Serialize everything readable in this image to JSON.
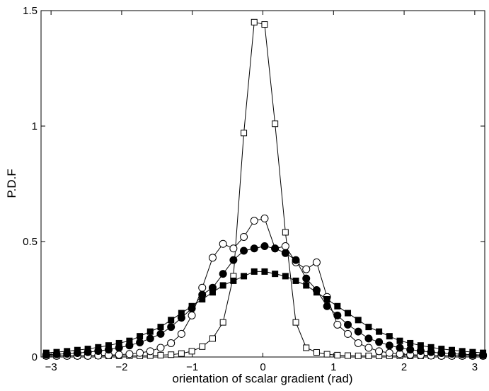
{
  "chart_data": {
    "type": "line",
    "title": "",
    "xlabel": "orientation of scalar gradient (rad)",
    "ylabel": "P.D.F",
    "xlim": [
      -3.1416,
      3.1416
    ],
    "ylim": [
      0,
      1.5
    ],
    "xticks": [
      -3,
      -2,
      -1,
      0,
      1,
      2,
      3
    ],
    "xtick_labels": [
      "−3",
      "−2",
      "−1",
      "0",
      "1",
      "2",
      "3"
    ],
    "yticks": [
      0,
      0.5,
      1,
      1.5
    ],
    "ytick_labels": [
      "0",
      "0.5",
      "1",
      "1.5"
    ],
    "grid": false,
    "legend": false,
    "x": [
      -3.0682,
      -2.9209,
      -2.7737,
      -2.6264,
      -2.4791,
      -2.3318,
      -2.1846,
      -2.0373,
      -1.89,
      -1.7426,
      -1.5955,
      -1.4482,
      -1.3009,
      -1.1536,
      -1.0063,
      -0.8591,
      -0.7118,
      -0.5645,
      -0.4172,
      -0.27,
      -0.1227,
      0.0246,
      0.1719,
      0.3191,
      0.4664,
      0.6137,
      0.761,
      0.9082,
      1.0555,
      1.2028,
      1.3501,
      1.4973,
      1.6446,
      1.7919,
      1.9392,
      2.0864,
      2.2337,
      2.381,
      2.5283,
      2.6755,
      2.8228,
      2.9701,
      3.1174
    ],
    "series": [
      {
        "marker": "open-square",
        "values": [
          0.005,
          0.005,
          0.005,
          0.005,
          0.005,
          0.005,
          0.005,
          0.005,
          0.005,
          0.005,
          0.006,
          0.008,
          0.01,
          0.015,
          0.025,
          0.045,
          0.08,
          0.15,
          0.35,
          0.97,
          1.45,
          1.44,
          1.01,
          0.54,
          0.15,
          0.04,
          0.02,
          0.012,
          0.008,
          0.006,
          0.005,
          0.005,
          0.005,
          0.005,
          0.005,
          0.005,
          0.005,
          0.005,
          0.005,
          0.005,
          0.005,
          0.005,
          0.005
        ]
      },
      {
        "marker": "open-circle",
        "values": [
          0.005,
          0.005,
          0.005,
          0.005,
          0.005,
          0.006,
          0.008,
          0.01,
          0.013,
          0.018,
          0.025,
          0.04,
          0.06,
          0.1,
          0.18,
          0.3,
          0.43,
          0.49,
          0.47,
          0.52,
          0.59,
          0.6,
          0.47,
          0.48,
          0.41,
          0.38,
          0.41,
          0.26,
          0.14,
          0.1,
          0.06,
          0.04,
          0.025,
          0.018,
          0.013,
          0.01,
          0.008,
          0.006,
          0.005,
          0.005,
          0.005,
          0.005,
          0.005
        ]
      },
      {
        "marker": "filled-circle",
        "values": [
          0.01,
          0.012,
          0.014,
          0.017,
          0.021,
          0.026,
          0.032,
          0.04,
          0.05,
          0.063,
          0.08,
          0.1,
          0.13,
          0.17,
          0.21,
          0.27,
          0.3,
          0.36,
          0.42,
          0.46,
          0.47,
          0.48,
          0.47,
          0.45,
          0.42,
          0.34,
          0.29,
          0.22,
          0.18,
          0.14,
          0.11,
          0.08,
          0.065,
          0.05,
          0.04,
          0.032,
          0.026,
          0.021,
          0.017,
          0.014,
          0.012,
          0.01,
          0.009
        ]
      },
      {
        "marker": "filled-square",
        "values": [
          0.018,
          0.021,
          0.025,
          0.03,
          0.035,
          0.042,
          0.05,
          0.06,
          0.07,
          0.09,
          0.11,
          0.13,
          0.16,
          0.19,
          0.22,
          0.25,
          0.28,
          0.31,
          0.33,
          0.35,
          0.37,
          0.37,
          0.36,
          0.35,
          0.33,
          0.31,
          0.28,
          0.25,
          0.22,
          0.19,
          0.16,
          0.13,
          0.11,
          0.09,
          0.07,
          0.06,
          0.05,
          0.042,
          0.035,
          0.03,
          0.025,
          0.021,
          0.018
        ]
      }
    ]
  }
}
